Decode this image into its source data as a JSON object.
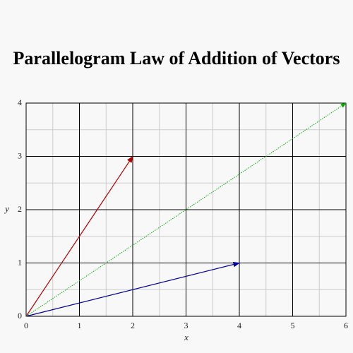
{
  "chart_data": {
    "type": "vector",
    "title": "Parallelogram Law of Addition of Vectors",
    "x_label": "x",
    "y_label": "y",
    "xlim": [
      0,
      6
    ],
    "ylim": [
      0,
      4
    ],
    "xticks": [
      0,
      1,
      2,
      3,
      4,
      5,
      6
    ],
    "yticks": [
      0,
      1,
      2,
      3,
      4
    ],
    "minor_xticks": [
      0.5,
      1.5,
      2.5,
      3.5,
      4.5,
      5.5
    ],
    "minor_yticks": [
      0.5,
      1.5,
      2.5,
      3.5
    ],
    "grid": true,
    "series": [
      {
        "color": "#b00000",
        "linestyle": "solid",
        "x": [
          0,
          2
        ],
        "values": [
          0,
          3
        ]
      },
      {
        "color": "#0000a0",
        "linestyle": "solid",
        "x": [
          0,
          4
        ],
        "values": [
          0,
          1
        ]
      },
      {
        "color": "#00b000",
        "linestyle": "dotted",
        "x": [
          0,
          6
        ],
        "values": [
          0,
          4
        ]
      }
    ]
  }
}
